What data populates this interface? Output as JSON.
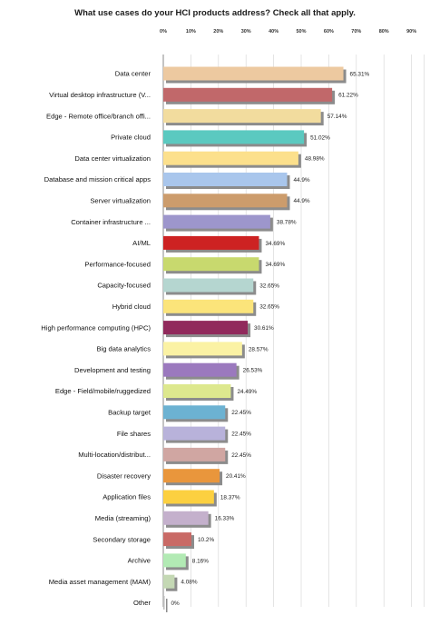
{
  "chart_data": {
    "type": "bar",
    "orientation": "horizontal",
    "title": "What use cases do your HCI products address?  Check all that apply.",
    "xlim": [
      0,
      90
    ],
    "x_ticks": [
      "0%",
      "10%",
      "20%",
      "30%",
      "40%",
      "50%",
      "60%",
      "70%",
      "80%",
      "90%"
    ],
    "grid": true,
    "legend": "none",
    "categories": [
      "Data center",
      "Virtual desktop infrastructure (V...",
      "Edge - Remote office/branch offi...",
      "Private cloud",
      "Data center virtualization",
      "Database and mission critical apps",
      "Server virtualization",
      "Container infrastructure ...",
      "AI/ML",
      "Performance-focused",
      "Capacity-focused",
      "Hybrid cloud",
      "High performance computing (HPC)",
      "Big data analytics",
      "Development and testing",
      "Edge - Field/mobile/ruggedized",
      "Backup target",
      "File shares",
      "Multi-location/distribut...",
      "Disaster recovery",
      "Application files",
      "Media (streaming)",
      "Secondary storage",
      "Archive",
      "Media asset management (MAM)",
      "Other"
    ],
    "values": [
      65.31,
      61.22,
      57.14,
      51.02,
      48.98,
      44.9,
      44.9,
      38.78,
      34.69,
      34.69,
      32.65,
      32.65,
      30.61,
      28.57,
      26.53,
      24.49,
      22.45,
      22.45,
      22.45,
      20.41,
      18.37,
      16.33,
      10.2,
      8.16,
      4.08,
      0
    ],
    "value_labels": [
      "65.31%",
      "61.22%",
      "57.14%",
      "51.02%",
      "48.98%",
      "44.9%",
      "44.9%",
      "38.78%",
      "34.69%",
      "34.69%",
      "32.65%",
      "32.65%",
      "30.61%",
      "28.57%",
      "26.53%",
      "24.49%",
      "22.45%",
      "22.45%",
      "22.45%",
      "20.41%",
      "18.37%",
      "16.33%",
      "10.2%",
      "8.16%",
      "4.08%",
      "0%"
    ],
    "colors": [
      "#edc9a0",
      "#c1686a",
      "#f2dc9e",
      "#5bc9c0",
      "#fce08c",
      "#a9c6ec",
      "#cc9c6c",
      "#9d96cc",
      "#cd2222",
      "#c8d96e",
      "#b5d6d0",
      "#fbe47a",
      "#912a5c",
      "#fbf2a4",
      "#9b79be",
      "#dde88e",
      "#6cb2d2",
      "#b8b2da",
      "#d0a6a2",
      "#e9963c",
      "#fcd040",
      "#c4b0cc",
      "#c96a66",
      "#b2eab4",
      "#c4d8b4",
      "#bcbcbc"
    ]
  }
}
